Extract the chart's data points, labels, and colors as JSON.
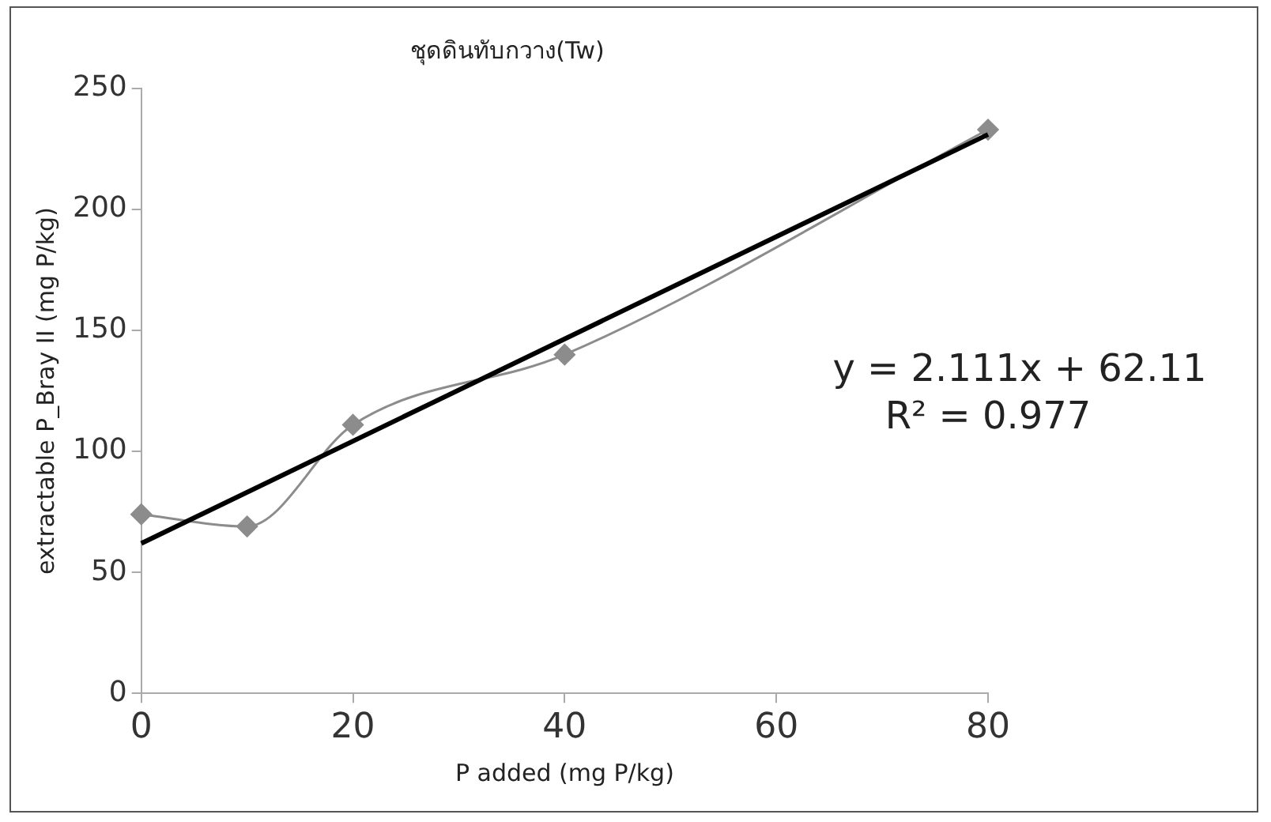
{
  "chart_data": {
    "type": "line",
    "title": "ชุดดินทับกวาง(Tw)",
    "xlabel": "P added (mg P/kg)",
    "ylabel": "extractable P_Bray II (mg P/kg)",
    "x": [
      0,
      10,
      20,
      40,
      80
    ],
    "series": [
      {
        "type": "line",
        "color": "#8c8c8c",
        "marker": "diamond",
        "values": [
          74,
          69,
          111,
          140,
          233
        ]
      },
      {
        "type": "line",
        "color": "#000000",
        "marker": "none",
        "x": [
          0,
          80
        ],
        "values": [
          62,
          231
        ]
      }
    ],
    "xlim": [
      0,
      80
    ],
    "xticks": [
      0,
      20,
      40,
      60,
      80
    ],
    "ylim": [
      0,
      250
    ],
    "yticks": [
      0,
      50,
      100,
      150,
      200,
      250
    ],
    "grid": false,
    "legend": false,
    "annotations": [
      "y = 2.111x + 62.11",
      "R² = 0.977"
    ]
  }
}
